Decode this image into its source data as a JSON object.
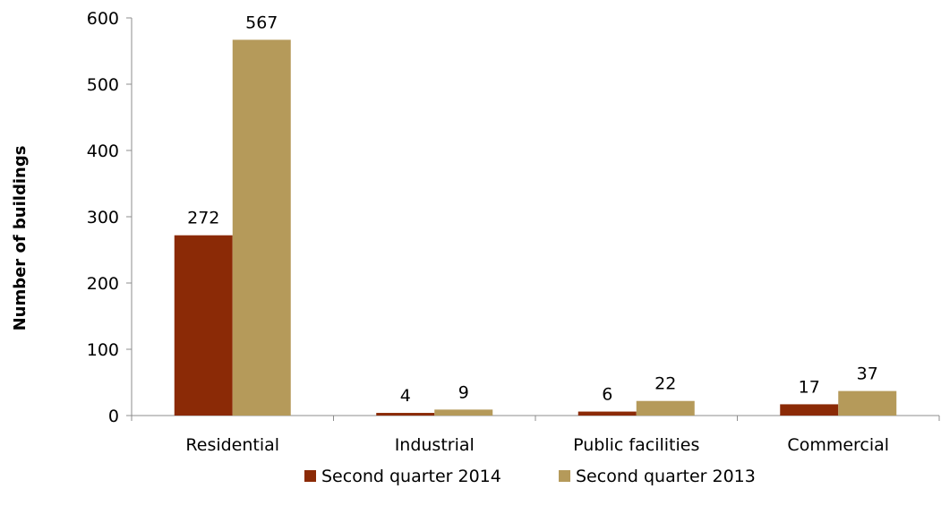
{
  "chart_data": {
    "type": "bar",
    "title": "",
    "xlabel": "",
    "ylabel": "Number of buildings",
    "categories": [
      "Residential",
      "Industrial",
      "Public facilities",
      "Commercial"
    ],
    "series": [
      {
        "name": "Second quarter 2014",
        "values": [
          272,
          4,
          6,
          17
        ],
        "color": "#8B2A06"
      },
      {
        "name": "Second quarter 2013",
        "values": [
          567,
          9,
          22,
          37
        ],
        "color": "#B59A5A"
      }
    ],
    "yticks": [
      0,
      100,
      200,
      300,
      400,
      500,
      600
    ],
    "ylim": [
      0,
      600
    ],
    "grid": false,
    "legend_position": "bottom-center",
    "data_labels": true
  }
}
